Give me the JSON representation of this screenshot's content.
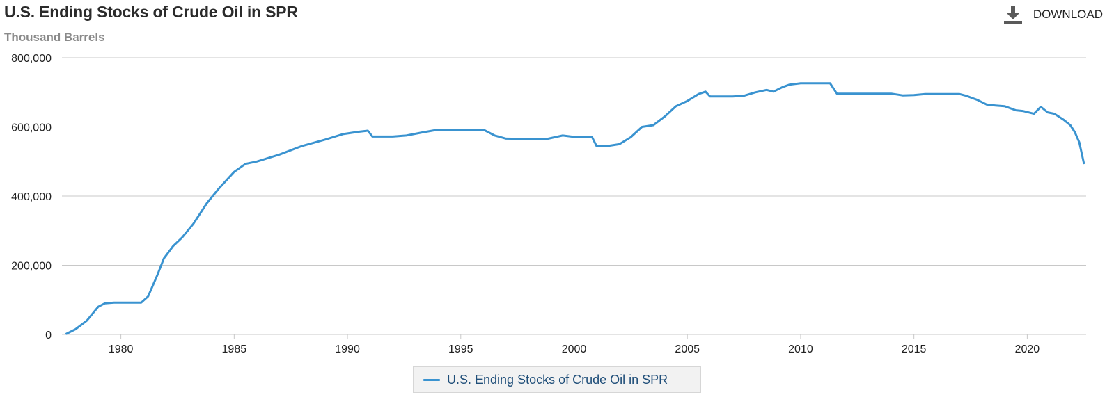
{
  "header": {
    "title": "U.S. Ending Stocks of Crude Oil in SPR",
    "subtitle": "Thousand Barrels",
    "download_label": "DOWNLOAD",
    "download_icon": "download-icon"
  },
  "colors": {
    "series": "#3a93d0",
    "grid": "#c8c8c8",
    "axis_text": "#222222",
    "legend_text": "#1f4e79"
  },
  "chart_data": {
    "type": "line",
    "title": "U.S. Ending Stocks of Crude Oil in SPR",
    "ylabel": "Thousand Barrels",
    "xlabel": "",
    "xlim": [
      1977.4,
      2022.6
    ],
    "ylim": [
      0,
      800000
    ],
    "grid": true,
    "legend_position": "bottom-center",
    "x_ticks": [
      1980,
      1985,
      1990,
      1995,
      2000,
      2005,
      2010,
      2015,
      2020
    ],
    "y_ticks": [
      0,
      200000,
      400000,
      600000,
      800000
    ],
    "x_tick_labels": [
      "1980",
      "1985",
      "1990",
      "1995",
      "2000",
      "2005",
      "2010",
      "2015",
      "2020"
    ],
    "y_tick_labels": [
      "0",
      "200,000",
      "400,000",
      "600,000",
      "800,000"
    ],
    "series": [
      {
        "name": "U.S. Ending Stocks of Crude Oil in SPR",
        "x": [
          1977.6,
          1978.0,
          1978.5,
          1979.0,
          1979.3,
          1979.7,
          1980.0,
          1980.5,
          1980.9,
          1981.2,
          1981.6,
          1981.9,
          1982.3,
          1982.7,
          1983.2,
          1983.8,
          1984.3,
          1985.0,
          1985.5,
          1986.0,
          1987.0,
          1988.0,
          1989.0,
          1989.8,
          1990.5,
          1990.9,
          1991.1,
          1992.0,
          1992.6,
          1993.3,
          1994.0,
          1995.0,
          1996.0,
          1996.5,
          1997.0,
          1998.0,
          1998.8,
          1999.5,
          2000.0,
          2000.5,
          2000.8,
          2001.0,
          2001.5,
          2002.0,
          2002.5,
          2003.0,
          2003.5,
          2004.0,
          2004.5,
          2005.0,
          2005.5,
          2005.8,
          2006.0,
          2006.5,
          2007.0,
          2007.5,
          2008.0,
          2008.5,
          2008.8,
          2009.2,
          2009.5,
          2010.0,
          2010.5,
          2011.0,
          2011.3,
          2011.6,
          2011.8,
          2012.5,
          2013.0,
          2014.0,
          2014.5,
          2015.0,
          2015.5,
          2016.0,
          2017.0,
          2017.3,
          2017.8,
          2018.2,
          2018.6,
          2019.0,
          2019.5,
          2019.8,
          2020.3,
          2020.6,
          2020.9,
          2021.2,
          2021.6,
          2021.9,
          2022.1,
          2022.3,
          2022.5
        ],
        "values": [
          2000,
          15000,
          40000,
          80000,
          90000,
          92000,
          92000,
          92000,
          92000,
          110000,
          170000,
          220000,
          255000,
          280000,
          320000,
          380000,
          420000,
          470000,
          493000,
          500000,
          520000,
          545000,
          563000,
          579000,
          586000,
          589000,
          572000,
          572000,
          575000,
          584000,
          592000,
          592000,
          592000,
          575000,
          566000,
          565000,
          565000,
          575000,
          571000,
          571000,
          570000,
          544000,
          545000,
          550000,
          570000,
          600000,
          605000,
          630000,
          660000,
          675000,
          695000,
          702000,
          688000,
          688000,
          688000,
          690000,
          700000,
          707000,
          702000,
          715000,
          722000,
          726000,
          726000,
          726000,
          726000,
          696000,
          696000,
          696000,
          696000,
          696000,
          691000,
          692000,
          695000,
          695000,
          695000,
          690000,
          678000,
          665000,
          662000,
          660000,
          648000,
          646000,
          638000,
          658000,
          642000,
          638000,
          621000,
          605000,
          585000,
          555000,
          495000
        ]
      }
    ]
  }
}
